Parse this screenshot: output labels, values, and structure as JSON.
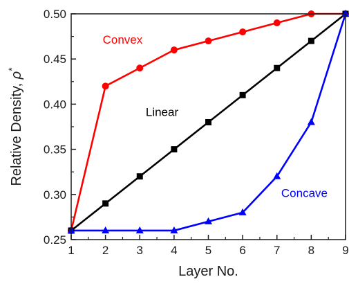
{
  "chart_data": {
    "type": "line",
    "title": "",
    "xlabel": "Layer No.",
    "ylabel_main": "Relative Density, ",
    "ylabel_symbol": "ρ",
    "ylabel_sup": "*",
    "x": [
      1,
      2,
      3,
      4,
      5,
      6,
      7,
      8,
      9
    ],
    "xlim": [
      1,
      9
    ],
    "ylim": [
      0.25,
      0.5
    ],
    "x_ticks": [
      "1",
      "2",
      "3",
      "4",
      "5",
      "6",
      "7",
      "8",
      "9"
    ],
    "y_ticks": [
      "0.25",
      "0.30",
      "0.35",
      "0.40",
      "0.45",
      "0.50"
    ],
    "grid": false,
    "legend": "inline labels",
    "series": [
      {
        "name": "Convex",
        "color": "#ff0000",
        "marker": "circle",
        "values": [
          0.26,
          0.42,
          0.44,
          0.46,
          0.47,
          0.48,
          0.49,
          0.5,
          0.5
        ]
      },
      {
        "name": "Linear",
        "color": "#000000",
        "marker": "square",
        "values": [
          0.26,
          0.29,
          0.32,
          0.35,
          0.38,
          0.41,
          0.44,
          0.47,
          0.5
        ]
      },
      {
        "name": "Concave",
        "color": "#0000ff",
        "marker": "triangle",
        "values": [
          0.26,
          0.26,
          0.26,
          0.26,
          0.27,
          0.28,
          0.32,
          0.38,
          0.5
        ]
      }
    ]
  }
}
